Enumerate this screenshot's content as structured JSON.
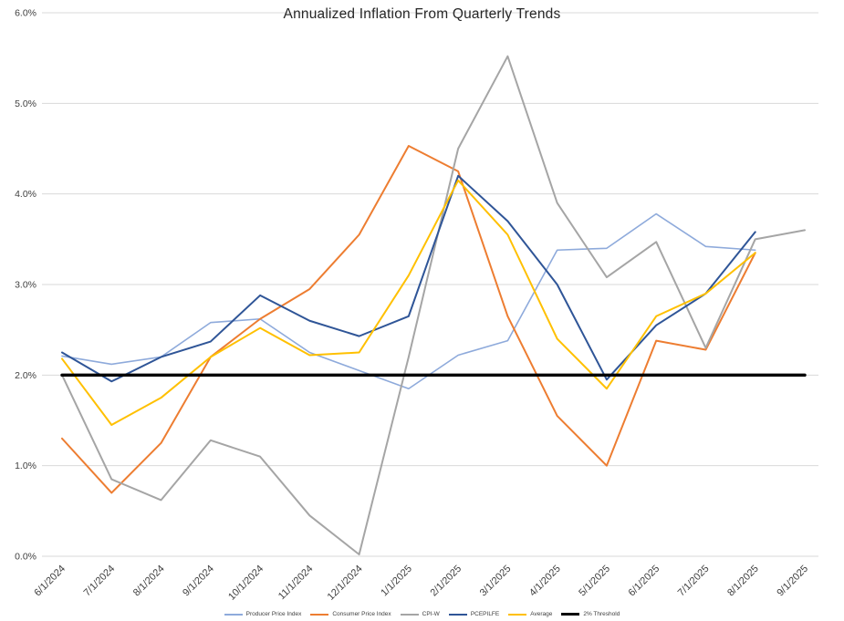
{
  "title": "Annualized Inflation From Quarterly Trends",
  "chart_data": {
    "type": "line",
    "categories": [
      "6/1/2024",
      "7/1/2024",
      "8/1/2024",
      "9/1/2024",
      "10/1/2024",
      "11/1/2024",
      "12/1/2024",
      "1/1/2025",
      "2/1/2025",
      "3/1/2025",
      "4/1/2025",
      "5/1/2025",
      "6/1/2025",
      "7/1/2025",
      "8/1/2025",
      "9/1/2025"
    ],
    "ylim": [
      0,
      6
    ],
    "y_ticks": [
      "0.0%",
      "1.0%",
      "2.0%",
      "3.0%",
      "4.0%",
      "5.0%",
      "6.0%"
    ],
    "grid": true,
    "legend_position": "bottom",
    "series": [
      {
        "name": "Producer Price Index",
        "color": "#8EAADB",
        "width": 1.6,
        "values": [
          2.21,
          2.12,
          2.2,
          2.58,
          2.62,
          2.25,
          2.05,
          1.85,
          2.22,
          2.38,
          3.38,
          3.4,
          3.78,
          3.42,
          3.38,
          null
        ]
      },
      {
        "name": "Consumer Price Index",
        "color": "#ED7D31",
        "width": 2.0,
        "values": [
          1.3,
          0.7,
          1.25,
          2.2,
          2.62,
          2.95,
          3.55,
          4.53,
          4.25,
          2.65,
          1.55,
          1.0,
          2.38,
          2.28,
          3.35,
          null
        ]
      },
      {
        "name": "CPI-W",
        "color": "#A5A5A5",
        "width": 2.0,
        "values": [
          2.0,
          0.85,
          0.62,
          1.28,
          1.1,
          0.45,
          0.02,
          2.2,
          4.5,
          5.52,
          3.9,
          3.08,
          3.47,
          2.3,
          3.5,
          3.6
        ]
      },
      {
        "name": "PCEPILFE",
        "color": "#2F5597",
        "width": 2.0,
        "values": [
          2.25,
          1.93,
          2.2,
          2.37,
          2.88,
          2.6,
          2.43,
          2.65,
          4.2,
          3.7,
          3.0,
          1.95,
          2.55,
          2.9,
          3.58,
          null
        ]
      },
      {
        "name": "Average",
        "color": "#FFC000",
        "width": 2.0,
        "values": [
          2.18,
          1.45,
          1.75,
          2.2,
          2.52,
          2.22,
          2.25,
          3.1,
          4.15,
          3.55,
          2.4,
          1.85,
          2.65,
          2.9,
          3.35,
          null
        ]
      },
      {
        "name": "2% Threshold",
        "color": "#000000",
        "width": 3.4,
        "values": [
          2.0,
          2.0,
          2.0,
          2.0,
          2.0,
          2.0,
          2.0,
          2.0,
          2.0,
          2.0,
          2.0,
          2.0,
          2.0,
          2.0,
          2.0,
          2.0
        ]
      }
    ]
  }
}
